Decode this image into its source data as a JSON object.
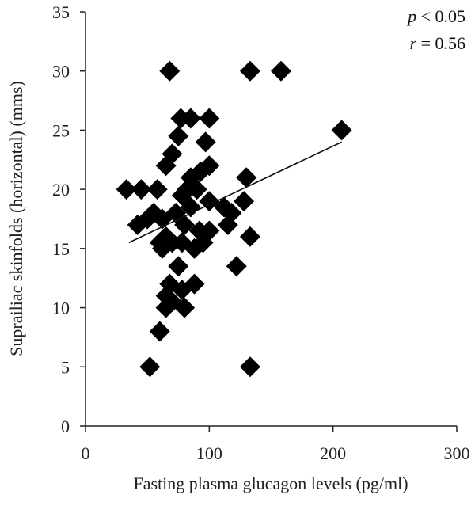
{
  "chart_data": {
    "type": "scatter",
    "xlabel": "Fasting plasma glucagon levels (pg/ml)",
    "ylabel": "Suprailiac skinfolds (horizontal) (mms)",
    "xlim": [
      0,
      300
    ],
    "ylim": [
      0,
      35
    ],
    "x_ticks": [
      "0",
      "100",
      "200",
      "300"
    ],
    "y_ticks": [
      "0",
      "5",
      "10",
      "15",
      "20",
      "25",
      "30",
      "35"
    ],
    "grid": false,
    "marker": "diamond",
    "marker_color": "#000000",
    "annotations": {
      "p_symbol": "p",
      "p_rest": " < 0.05",
      "r_symbol": "r",
      "r_rest": " = 0.56"
    },
    "regression_line": {
      "x": [
        35,
        207
      ],
      "y": [
        15.5,
        24.0
      ]
    },
    "points": [
      {
        "x": 68,
        "y": 30
      },
      {
        "x": 133,
        "y": 30
      },
      {
        "x": 158,
        "y": 30
      },
      {
        "x": 77,
        "y": 26
      },
      {
        "x": 85,
        "y": 26
      },
      {
        "x": 100,
        "y": 26
      },
      {
        "x": 207,
        "y": 25
      },
      {
        "x": 75,
        "y": 24.5
      },
      {
        "x": 97,
        "y": 24
      },
      {
        "x": 70,
        "y": 23
      },
      {
        "x": 65,
        "y": 22
      },
      {
        "x": 100,
        "y": 22
      },
      {
        "x": 93,
        "y": 21.5
      },
      {
        "x": 85,
        "y": 21
      },
      {
        "x": 130,
        "y": 21
      },
      {
        "x": 33,
        "y": 20
      },
      {
        "x": 45,
        "y": 20
      },
      {
        "x": 58,
        "y": 20
      },
      {
        "x": 82,
        "y": 20
      },
      {
        "x": 90,
        "y": 20
      },
      {
        "x": 78,
        "y": 19.5
      },
      {
        "x": 100,
        "y": 19
      },
      {
        "x": 128,
        "y": 19
      },
      {
        "x": 85,
        "y": 18.5
      },
      {
        "x": 112,
        "y": 18.5
      },
      {
        "x": 55,
        "y": 18
      },
      {
        "x": 73,
        "y": 18
      },
      {
        "x": 118,
        "y": 18
      },
      {
        "x": 62,
        "y": 17.5
      },
      {
        "x": 50,
        "y": 17.5
      },
      {
        "x": 42,
        "y": 17
      },
      {
        "x": 80,
        "y": 17
      },
      {
        "x": 115,
        "y": 17
      },
      {
        "x": 92,
        "y": 16.5
      },
      {
        "x": 100,
        "y": 16.5
      },
      {
        "x": 133,
        "y": 16
      },
      {
        "x": 65,
        "y": 16
      },
      {
        "x": 60,
        "y": 15.5
      },
      {
        "x": 70,
        "y": 15.5
      },
      {
        "x": 78,
        "y": 15.5
      },
      {
        "x": 88,
        "y": 15
      },
      {
        "x": 62,
        "y": 15
      },
      {
        "x": 95,
        "y": 15.5
      },
      {
        "x": 75,
        "y": 13.5
      },
      {
        "x": 122,
        "y": 13.5
      },
      {
        "x": 68,
        "y": 12
      },
      {
        "x": 88,
        "y": 12
      },
      {
        "x": 78,
        "y": 11.5
      },
      {
        "x": 65,
        "y": 11
      },
      {
        "x": 70,
        "y": 10.5
      },
      {
        "x": 65,
        "y": 10
      },
      {
        "x": 80,
        "y": 10
      },
      {
        "x": 60,
        "y": 8
      },
      {
        "x": 52,
        "y": 5
      },
      {
        "x": 133,
        "y": 5
      }
    ]
  }
}
